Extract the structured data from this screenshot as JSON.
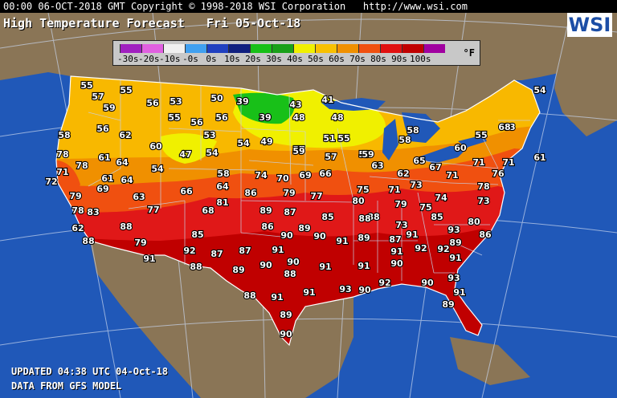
{
  "header_bar": {
    "text": "00:00 06-OCT-2018 GMT Copyright © 1998-2018 WSI Corporation   http://www.wsi.com"
  },
  "title": "High Temperature Forecast   Fri 05-Oct-18",
  "logo": "WSI",
  "legend": {
    "unit": "°F",
    "bins": [
      {
        "label": "-30s",
        "color": "#a020c0"
      },
      {
        "label": "-20s",
        "color": "#e060e0"
      },
      {
        "label": "-10s",
        "color": "#f0f0f0"
      },
      {
        "label": "-0s",
        "color": "#40a0f0"
      },
      {
        "label": "0s",
        "color": "#2040c0"
      },
      {
        "label": "10s",
        "color": "#102080"
      },
      {
        "label": "20s",
        "color": "#18c018"
      },
      {
        "label": "30s",
        "color": "#1aa01a"
      },
      {
        "label": "40s",
        "color": "#f0f000"
      },
      {
        "label": "50s",
        "color": "#f8c000"
      },
      {
        "label": "60s",
        "color": "#f09000"
      },
      {
        "label": "70s",
        "color": "#f05010"
      },
      {
        "label": "80s",
        "color": "#e01010"
      },
      {
        "label": "90s",
        "color": "#c00000"
      },
      {
        "label": "100s",
        "color": "#a000a0"
      }
    ]
  },
  "footer": {
    "updated": "UPDATED 04:38 UTC 04-Oct-18",
    "source": "DATA FROM GFS MODEL"
  },
  "temperatures": [
    "55",
    "57",
    "59",
    "55",
    "56",
    "53",
    "50",
    "39",
    "43",
    "41",
    "54",
    "58",
    "56",
    "62",
    "55",
    "56",
    "56",
    "39",
    "48",
    "48",
    "58",
    "63",
    "78",
    "61",
    "60",
    "53",
    "54",
    "49",
    "57",
    "51",
    "55",
    "57",
    "55",
    "68",
    "61",
    "71",
    "78",
    "64",
    "54",
    "47",
    "54",
    "59",
    "57",
    "59",
    "58",
    "65",
    "60",
    "67",
    "72",
    "61",
    "64",
    "58",
    "74",
    "70",
    "69",
    "66",
    "63",
    "62",
    "71",
    "71",
    "76",
    "71",
    "79",
    "69",
    "63",
    "66",
    "64",
    "86",
    "79",
    "77",
    "75",
    "71",
    "73",
    "74",
    "78",
    "78",
    "83",
    "77",
    "68",
    "81",
    "89",
    "87",
    "85",
    "80",
    "88",
    "79",
    "75",
    "85",
    "80",
    "73",
    "62",
    "88",
    "86",
    "89",
    "88",
    "73",
    "88",
    "79",
    "85",
    "92",
    "87",
    "87",
    "90",
    "90",
    "91",
    "89",
    "87",
    "91",
    "93",
    "89",
    "86",
    "91",
    "88",
    "89",
    "90",
    "91",
    "90",
    "91",
    "91",
    "91",
    "92",
    "92",
    "90",
    "88",
    "91",
    "91",
    "93",
    "90",
    "92",
    "90",
    "90",
    "89",
    "88",
    "91",
    "93",
    "91",
    "89"
  ]
}
